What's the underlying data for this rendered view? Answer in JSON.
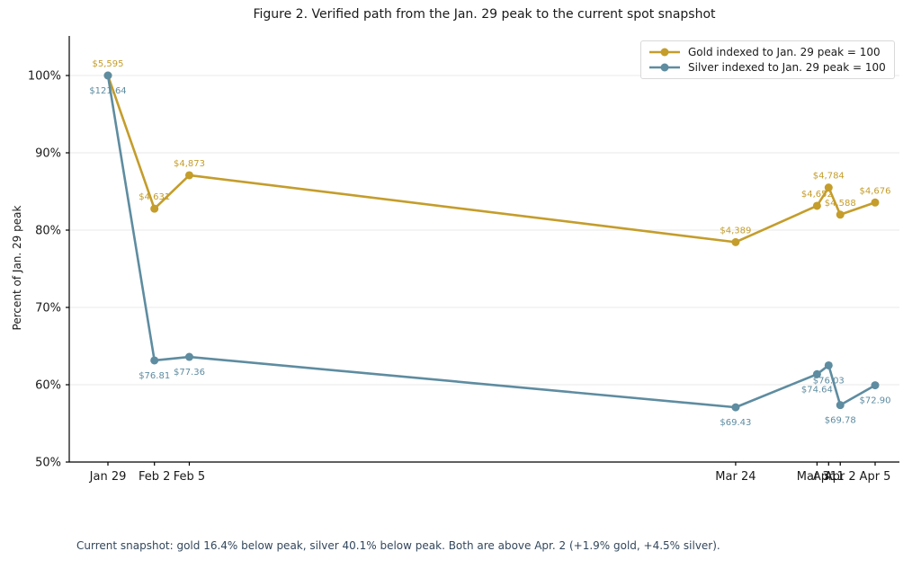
{
  "figure": {
    "title": "Figure 2. Verified path from the Jan. 29 peak to the current spot snapshot",
    "footnote": "Current snapshot: gold 16.4% below peak, silver 40.1% below peak. Both are above Apr. 2 (+1.9% gold, +4.5% silver)."
  },
  "chart_data": {
    "type": "line",
    "title": "Figure 2. Verified path from the Jan. 29 peak to the current spot snapshot",
    "xlabel": "",
    "ylabel": "Percent of Jan. 29 peak",
    "ylim": [
      50,
      100
    ],
    "ytick_values": [
      50,
      60,
      70,
      80,
      90,
      100
    ],
    "ytick_labels": [
      "50%",
      "60%",
      "70%",
      "80%",
      "90%",
      "100%"
    ],
    "grid": "horizontal-only",
    "grid_color": "#e8e8e8",
    "axis_color": "#000000",
    "legend_position": "upper-right-inside",
    "x_tick_labels": [
      "Jan 29",
      "Feb 2",
      "Feb 5",
      "Mar 24",
      "Mar 31",
      "Apr 1",
      "Apr 2",
      "Apr 5"
    ],
    "x_day_offsets": [
      0,
      4,
      7,
      54,
      61,
      62,
      63,
      66
    ],
    "series": [
      {
        "name": "Gold indexed to Jan. 29 peak = 100",
        "color": "#c49d2b",
        "prices": [
          5595,
          4631,
          4873,
          4389,
          4652,
          4784,
          4588,
          4676
        ],
        "price_labels": [
          "$5,595",
          "$4,631",
          "$4,873",
          "$4,389",
          "$4,652",
          "$4,784",
          "$4,588",
          "$4,676"
        ],
        "indexed_pct": [
          100,
          82.8,
          87.1,
          78.4,
          83.1,
          85.5,
          82.0,
          83.6
        ],
        "label_side": "above"
      },
      {
        "name": "Silver indexed to Jan. 29 peak = 100",
        "color": "#5e8ca0",
        "prices": [
          121.64,
          76.81,
          77.36,
          69.43,
          74.64,
          76.03,
          69.78,
          72.9
        ],
        "price_labels": [
          "$121.64",
          "$76.81",
          "$77.36",
          "$69.43",
          "$74.64",
          "$76.03",
          "$69.78",
          "$72.90"
        ],
        "indexed_pct": [
          100,
          63.1,
          63.6,
          57.1,
          61.4,
          62.5,
          57.4,
          59.9
        ],
        "label_side": "below"
      }
    ],
    "footnote": "Current snapshot: gold 16.4% below peak, silver 40.1% below peak. Both are above Apr. 2 (+1.9% gold, +4.5% silver)."
  }
}
